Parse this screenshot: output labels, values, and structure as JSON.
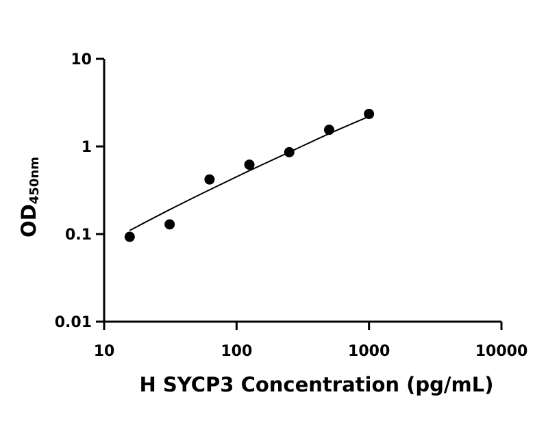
{
  "chart_data": {
    "type": "scatter",
    "xlabel": "H SYCP3 Concentration (pg/mL)",
    "ylabel_main": "OD",
    "ylabel_sub": "450nm",
    "xscale": "log",
    "yscale": "log",
    "xlim": [
      10,
      10000
    ],
    "ylim": [
      0.01,
      10
    ],
    "xticks": [
      "10",
      "100",
      "1000",
      "10000"
    ],
    "yticks": [
      "0.01",
      "0.1",
      "1",
      "10"
    ],
    "grid": false,
    "x": [
      15.6,
      31.25,
      62.5,
      125,
      250,
      500,
      1000
    ],
    "y": [
      0.093,
      0.129,
      0.42,
      0.62,
      0.86,
      1.55,
      2.35
    ],
    "fit_line": {
      "type": "curve",
      "x_range": [
        15.6,
        1000
      ],
      "points": [
        [
          15.6,
          0.11
        ],
        [
          31.25,
          0.19
        ],
        [
          62.5,
          0.32
        ],
        [
          125,
          0.53
        ],
        [
          250,
          0.86
        ],
        [
          500,
          1.4
        ],
        [
          1000,
          2.2
        ]
      ]
    },
    "point_color": "#000000",
    "line_color": "#000000"
  }
}
